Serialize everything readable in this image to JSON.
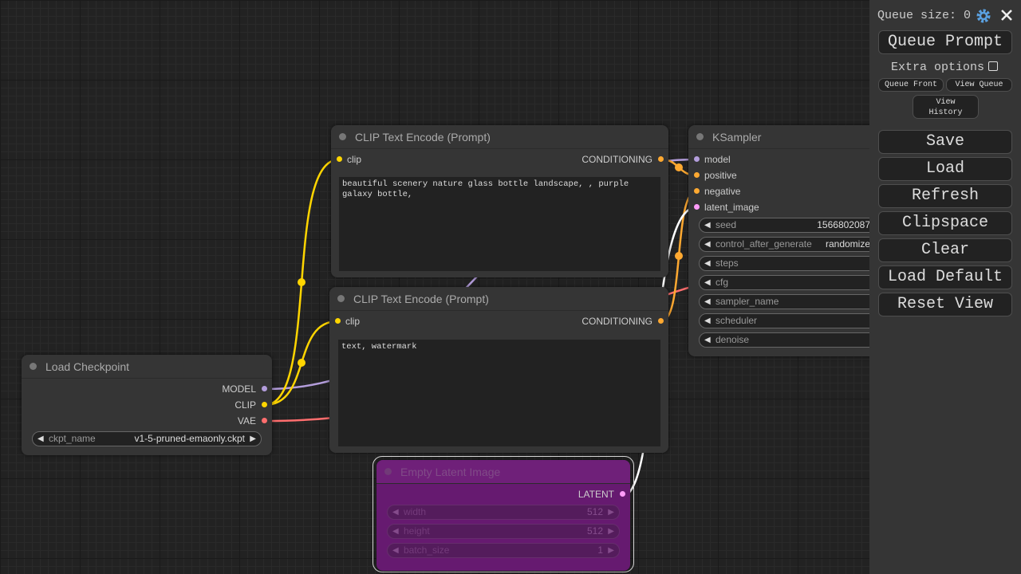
{
  "nodes": [
    {
      "title": "CLIP Text Encode (Prompt)",
      "inputs": [
        {
          "name": "clip",
          "color": "#ffd500"
        }
      ],
      "outputs": [
        {
          "name": "CONDITIONING",
          "color": "#ffa931"
        }
      ],
      "text": "beautiful scenery nature glass bottle landscape, , purple galaxy bottle,"
    },
    {
      "title": "CLIP Text Encode (Prompt)",
      "inputs": [
        {
          "name": "clip",
          "color": "#ffd500"
        }
      ],
      "outputs": [
        {
          "name": "CONDITIONING",
          "color": "#ffa931"
        }
      ],
      "text": "text, watermark"
    },
    {
      "title": "Load Checkpoint",
      "outputs": [
        {
          "name": "MODEL",
          "color": "#b39ddb"
        },
        {
          "name": "CLIP",
          "color": "#ffd500"
        },
        {
          "name": "VAE",
          "color": "#ff6e6e"
        }
      ],
      "widgets": [
        {
          "name": "ckpt_name",
          "value": "v1-5-pruned-emaonly.ckpt"
        }
      ]
    },
    {
      "title": "KSampler",
      "inputs": [
        {
          "name": "model",
          "color": "#b39ddb"
        },
        {
          "name": "positive",
          "color": "#ffa931"
        },
        {
          "name": "negative",
          "color": "#ffa931"
        },
        {
          "name": "latent_image",
          "color": "#ff9cf9"
        }
      ],
      "widgets": [
        {
          "name": "seed",
          "value": 1566802087
        },
        {
          "name": "control_after_generate",
          "value": "randomize"
        },
        {
          "name": "steps"
        },
        {
          "name": "cfg"
        },
        {
          "name": "sampler_name"
        },
        {
          "name": "scheduler"
        },
        {
          "name": "denoise"
        }
      ]
    },
    {
      "title": "Empty Latent Image",
      "outputs": [
        {
          "name": "LATENT",
          "color": "#ff9cf9"
        }
      ],
      "widgets": [
        {
          "name": "width",
          "value": 512
        },
        {
          "name": "height",
          "value": 512
        },
        {
          "name": "batch_size",
          "value": 1
        }
      ]
    }
  ],
  "queue_panel": {
    "queue_size": "Queue size: 0",
    "queue_prompt": "Queue Prompt",
    "extra_options": "Extra options",
    "extra_buttons": [
      "Queue Front",
      "View Queue",
      "View History"
    ],
    "menu": [
      "Save",
      "Load",
      "Refresh",
      "Clipspace",
      "Clear",
      "Load Default",
      "Reset View"
    ]
  }
}
